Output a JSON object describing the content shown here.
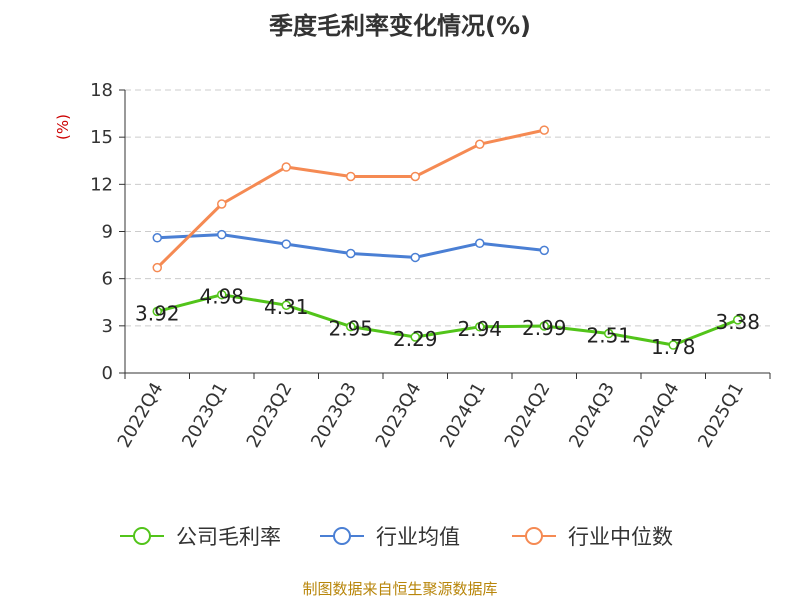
{
  "chart_data": {
    "type": "line",
    "title": "季度毛利率变化情况(%)",
    "ylabel": "(%)",
    "xlabel": "",
    "ylim": [
      0,
      18
    ],
    "yticks": [
      0,
      3,
      6,
      9,
      12,
      15,
      18
    ],
    "categories": [
      "2022Q4",
      "2023Q1",
      "2023Q2",
      "2023Q3",
      "2023Q4",
      "2024Q1",
      "2024Q2",
      "2024Q3",
      "2024Q4",
      "2025Q1"
    ],
    "grid": true,
    "legend_position": "bottom",
    "series": [
      {
        "name": "公司毛利率",
        "color": "#52c41a",
        "show_labels": true,
        "values": [
          3.92,
          4.98,
          4.31,
          2.95,
          2.29,
          2.94,
          2.99,
          2.51,
          1.78,
          3.38
        ]
      },
      {
        "name": "行业均值",
        "color": "#4a7fd4",
        "show_labels": false,
        "values": [
          8.6,
          8.8,
          8.2,
          7.6,
          7.35,
          8.25,
          7.8,
          null,
          null,
          null
        ]
      },
      {
        "name": "行业中位数",
        "color": "#f58a53",
        "show_labels": false,
        "values": [
          6.7,
          10.75,
          13.1,
          12.5,
          12.5,
          14.55,
          15.45,
          null,
          null,
          null
        ]
      }
    ]
  },
  "source_note": "制图数据来自恒生聚源数据库"
}
